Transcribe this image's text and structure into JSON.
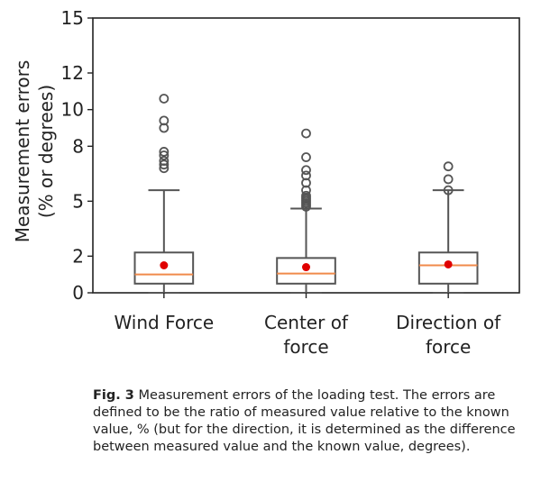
{
  "chart_data": {
    "type": "box",
    "ylabel_line1": "Measurement errors",
    "ylabel_line2": "(% or degrees)",
    "ylim": [
      0,
      15
    ],
    "yticks": [
      0,
      2,
      5,
      8,
      10,
      12,
      15
    ],
    "categories": [
      {
        "line1": "Wind Force",
        "line2": ""
      },
      {
        "line1": "Center of",
        "line2": "force"
      },
      {
        "line1": "Direction of",
        "line2": "force"
      }
    ],
    "boxes": [
      {
        "whisker_low": 0.0,
        "q1": 0.5,
        "median": 1.0,
        "q3": 2.2,
        "whisker_high": 5.6,
        "mean": 1.5,
        "outliers": [
          6.8,
          7.0,
          7.2,
          7.5,
          7.7,
          9.0,
          9.4,
          10.6
        ]
      },
      {
        "whisker_low": 0.0,
        "q1": 0.5,
        "median": 1.05,
        "q3": 1.9,
        "whisker_high": 4.6,
        "mean": 1.4,
        "outliers": [
          4.7,
          4.8,
          4.9,
          5.0,
          5.1,
          5.2,
          5.3,
          5.6,
          6.0,
          6.4,
          6.7,
          7.4,
          8.7
        ]
      },
      {
        "whisker_low": 0.0,
        "q1": 0.5,
        "median": 1.5,
        "q3": 2.2,
        "whisker_high": 5.6,
        "mean": 1.55,
        "outliers": [
          5.6,
          6.2,
          6.9
        ]
      }
    ],
    "colors": {
      "box": "#555555",
      "median": "#f08a4b",
      "mean": "#e00000",
      "outlier": "#555555"
    }
  },
  "caption": {
    "label": "Fig. 3",
    "text": "Measurement errors of the loading test. The errors are defined to be the ratio of measured value relative to the known value, % (but for the direction, it is determined as the difference between measured value and the known value, degrees)."
  }
}
